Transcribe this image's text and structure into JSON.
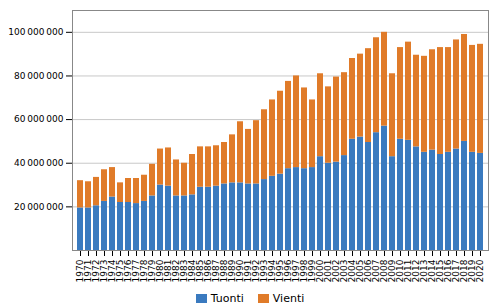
{
  "chart_data": {
    "type": "bar",
    "stacked": true,
    "categories": [
      "1970",
      "1971",
      "1972",
      "1973",
      "1974",
      "1975",
      "1976",
      "1977",
      "1978",
      "1979",
      "1980",
      "1981",
      "1982",
      "1983",
      "1984",
      "1985",
      "1986",
      "1987",
      "1988",
      "1989",
      "1990",
      "1991",
      "1992",
      "1993",
      "1994",
      "1995",
      "1996",
      "1997",
      "1998",
      "1999",
      "2000",
      "2001",
      "2002",
      "2003",
      "2004",
      "2005",
      "2006",
      "2007",
      "2008",
      "2009",
      "2010",
      "2011",
      "2012",
      "2013",
      "2014",
      "2015",
      "2016",
      "2017",
      "2018",
      "2019",
      "2020"
    ],
    "series": [
      {
        "name": "Tuonti",
        "color": "#3a7abf",
        "values": [
          19500000,
          19500000,
          20500000,
          22500000,
          24500000,
          22000000,
          22000000,
          21500000,
          22500000,
          25000000,
          30000000,
          29500000,
          25000000,
          25000000,
          25500000,
          29000000,
          29000000,
          29500000,
          30500000,
          31000000,
          31000000,
          30500000,
          30500000,
          32500000,
          34000000,
          35000000,
          37500000,
          38000000,
          37500000,
          38000000,
          43000000,
          40000000,
          40500000,
          43500000,
          51000000,
          52000000,
          49500000,
          54000000,
          57000000,
          43000000,
          51000000,
          50500000,
          47500000,
          45000000,
          46000000,
          44000000,
          45000000,
          46500000,
          50000000,
          45000000,
          44500000
        ]
      },
      {
        "name": "Vienti",
        "color": "#e07b29",
        "values": [
          12500000,
          12000000,
          13000000,
          14500000,
          13500000,
          9000000,
          11000000,
          11500000,
          12000000,
          14500000,
          16500000,
          17500000,
          16500000,
          15000000,
          18500000,
          18500000,
          18500000,
          18500000,
          19000000,
          22000000,
          28000000,
          25000000,
          29000000,
          32000000,
          35000000,
          38000000,
          40000000,
          42000000,
          37000000,
          31000000,
          38000000,
          35000000,
          39000000,
          38000000,
          37000000,
          38000000,
          43000000,
          43500000,
          43000000,
          38000000,
          42000000,
          45000000,
          42000000,
          44000000,
          46000000,
          49000000,
          48000000,
          50000000,
          49000000,
          49000000,
          50000000
        ]
      }
    ],
    "ylim": [
      0,
      110000000
    ],
    "yticks": [
      {
        "value": 20000000,
        "label": "20 000 000"
      },
      {
        "value": 40000000,
        "label": "40 000 000"
      },
      {
        "value": 60000000,
        "label": "60 000 000"
      },
      {
        "value": 80000000,
        "label": "80 000 000"
      },
      {
        "value": 100000000,
        "label": "100 000 000"
      }
    ],
    "grid": true,
    "legend": "bottom"
  }
}
